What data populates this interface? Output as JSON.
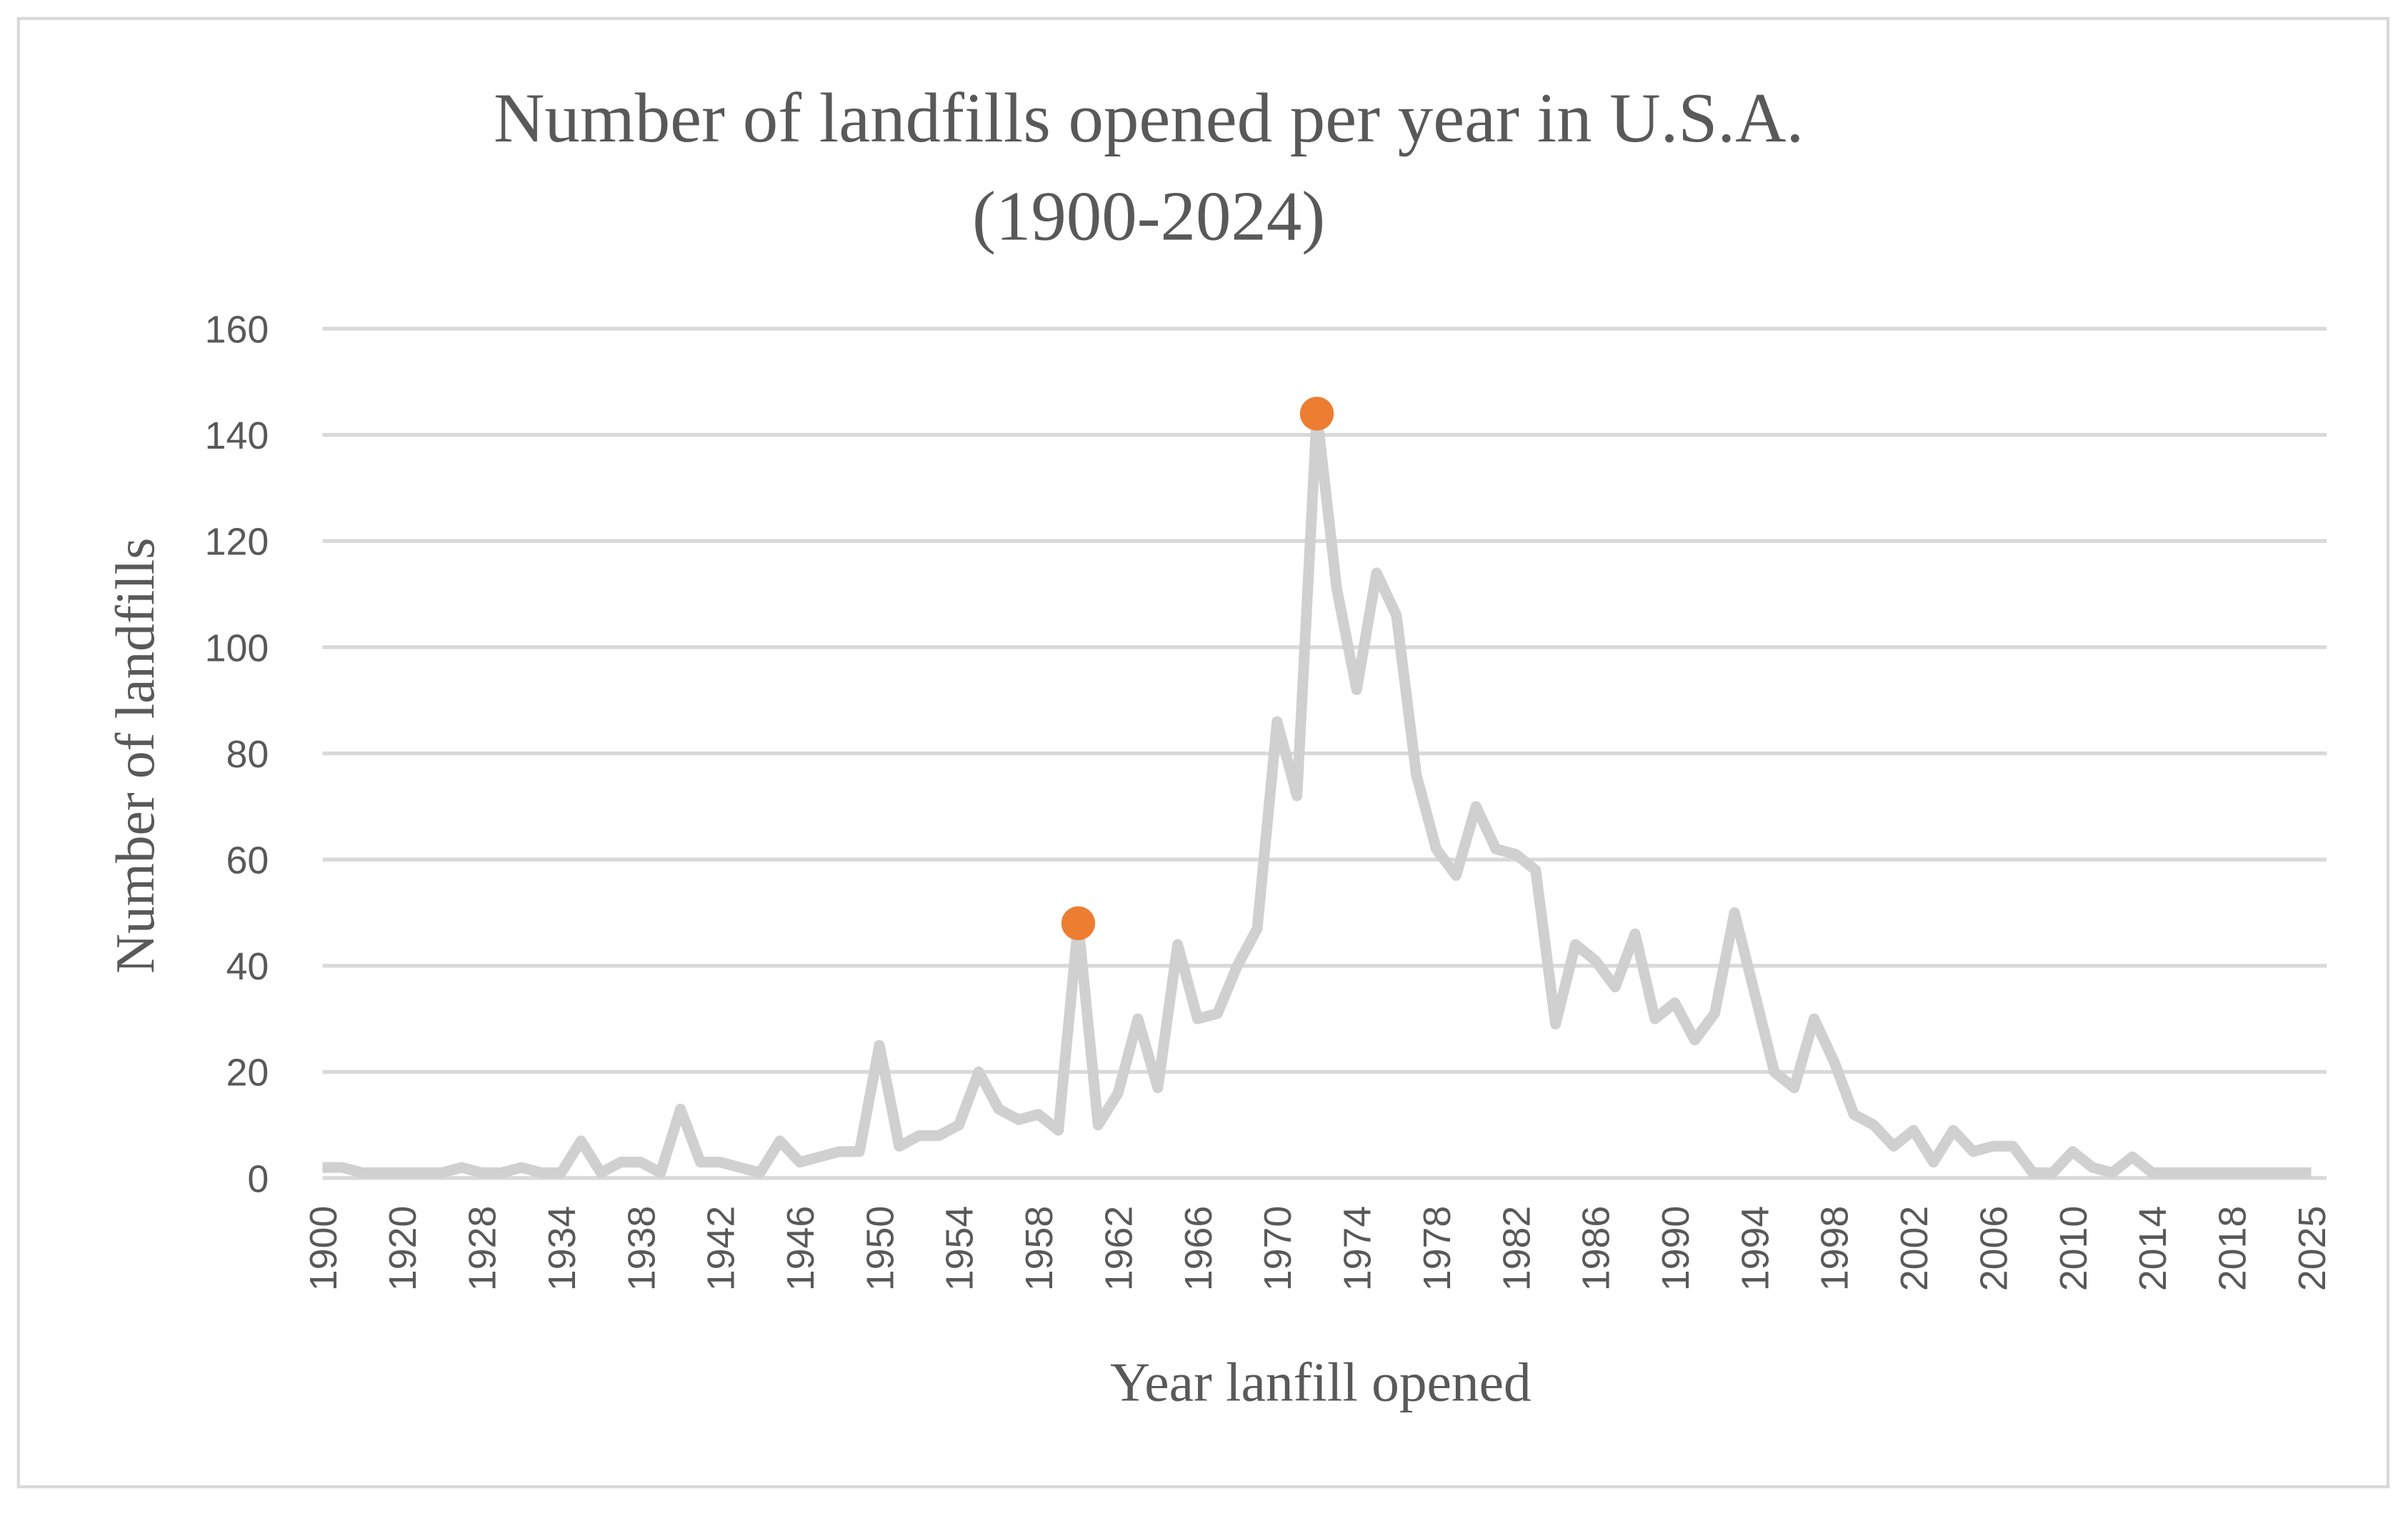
{
  "chart_data": {
    "type": "line",
    "title": [
      "Number of landfills opened per year in U.S.A.",
      "(1900-2024)"
    ],
    "x_label": "Year lanfill opened",
    "y_label": "Number of landfills",
    "categories": [
      "1900",
      null,
      null,
      null,
      "1920",
      null,
      null,
      null,
      "1928",
      null,
      null,
      null,
      "1934",
      null,
      null,
      null,
      "1938",
      null,
      null,
      null,
      "1942",
      null,
      null,
      null,
      "1946",
      null,
      null,
      null,
      "1950",
      null,
      null,
      null,
      "1954",
      null,
      null,
      null,
      "1958",
      null,
      null,
      null,
      "1962",
      null,
      null,
      null,
      "1966",
      null,
      null,
      null,
      "1970",
      null,
      null,
      null,
      "1974",
      null,
      null,
      null,
      "1978",
      null,
      null,
      null,
      "1982",
      null,
      null,
      null,
      "1986",
      null,
      null,
      null,
      "1990",
      null,
      null,
      null,
      "1994",
      null,
      null,
      null,
      "1998",
      null,
      null,
      null,
      "2002",
      null,
      null,
      null,
      "2006",
      null,
      null,
      null,
      "2010",
      null,
      null,
      null,
      "2014",
      null,
      null,
      null,
      "2018",
      null,
      null,
      null,
      "2025"
    ],
    "series": [
      {
        "color": "#d0d0d0",
        "values": [
          2,
          2,
          1,
          1,
          1,
          1,
          1,
          2,
          1,
          1,
          2,
          1,
          1,
          7,
          1,
          3,
          3,
          1,
          13,
          3,
          3,
          2,
          1,
          7,
          3,
          4,
          5,
          5,
          25,
          6,
          8,
          8,
          10,
          20,
          13,
          11,
          12,
          9,
          48,
          10,
          16,
          30,
          17,
          44,
          30,
          31,
          40,
          47,
          86,
          72,
          144,
          111,
          92,
          114,
          106,
          76,
          62,
          57,
          70,
          62,
          61,
          58,
          29,
          44,
          41,
          36,
          46,
          30,
          33,
          26,
          31,
          50,
          35,
          20,
          17,
          30,
          22,
          12,
          10,
          6,
          9,
          3,
          9,
          5,
          6,
          6,
          1,
          1,
          5,
          2,
          1,
          4,
          1,
          1,
          1,
          1,
          1,
          1,
          1,
          1,
          1
        ]
      },
      {
        "color": "#ed7d31",
        "marker": "circle",
        "values": [
          null,
          null,
          null,
          null,
          null,
          null,
          null,
          null,
          null,
          null,
          null,
          null,
          null,
          null,
          null,
          null,
          null,
          null,
          null,
          null,
          null,
          null,
          null,
          null,
          null,
          null,
          null,
          null,
          null,
          null,
          null,
          null,
          null,
          null,
          null,
          null,
          null,
          null,
          48,
          null,
          null,
          null,
          null,
          null,
          null,
          null,
          null,
          null,
          null,
          null,
          144,
          null,
          null,
          null,
          null,
          null,
          null,
          null,
          null,
          null,
          null,
          null,
          null,
          null,
          null,
          null,
          null,
          null,
          null,
          null,
          null,
          null,
          null,
          null,
          null,
          null,
          null,
          null,
          null,
          null,
          null,
          null,
          null,
          null,
          null,
          null,
          null,
          null,
          null,
          null,
          null,
          null,
          null,
          null,
          null,
          null,
          null,
          null,
          null,
          null,
          null
        ]
      }
    ],
    "ylim": [
      0,
      160
    ],
    "yticks": [
      0,
      20,
      40,
      60,
      80,
      100,
      120,
      140,
      160
    ],
    "grid": true
  }
}
